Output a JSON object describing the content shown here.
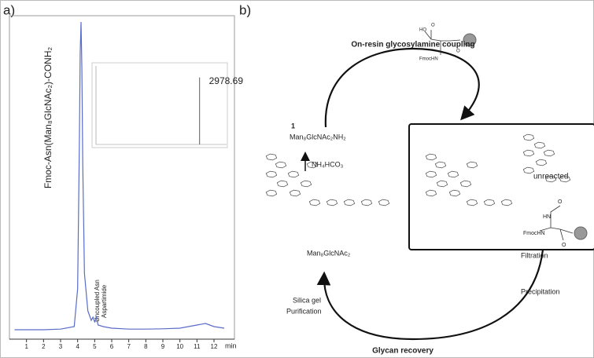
{
  "panels": {
    "a": "a)",
    "b": "b)"
  },
  "chart_data": [
    {
      "type": "line",
      "color": "#5a6cc8",
      "x": [
        0.3,
        1,
        2,
        3,
        3.8,
        4.0,
        4.1,
        4.15,
        4.2,
        4.25,
        4.3,
        4.4,
        4.6,
        4.8,
        4.9,
        5.0,
        5.1,
        5.2,
        5.5,
        6,
        7,
        8,
        9,
        10,
        11,
        11.5,
        12,
        12.6
      ],
      "values": [
        2,
        2,
        2,
        2.2,
        3,
        15,
        60,
        90,
        100,
        85,
        55,
        20,
        8,
        5,
        6,
        4.5,
        6,
        3.5,
        3,
        2.5,
        2.2,
        2.2,
        2.3,
        2.5,
        3.5,
        4,
        3,
        2.5
      ],
      "xlim": [
        0,
        13.2
      ],
      "xticks": [
        1,
        2,
        3,
        4,
        5,
        6,
        7,
        8,
        9,
        10,
        11,
        12
      ],
      "ylim": [
        0,
        100
      ],
      "x_label": "min",
      "annotations": [
        "Fmoc-Asn(Man₈GlcNAc₂)-CONH₂",
        "Uncoupled Asn",
        "Aspartimide"
      ]
    },
    {
      "type": "spectrum",
      "color": "#777777",
      "x": [
        2978.69
      ],
      "values": [
        5400
      ],
      "xlim": [
        600,
        3600
      ],
      "ylim": [
        0,
        6200
      ]
    }
  ],
  "diagram": {
    "title": "On-resin glycosylamine coupling",
    "compound_number": "1",
    "amine": "Man₈GlcNAc₂NH₂",
    "reagent": "NH₄HCO₃",
    "glycan": "Man₈GlcNAc₂",
    "unreacted": "unreacted",
    "resin_labels": [
      "HO",
      "O",
      "FmocHN",
      "O"
    ],
    "box_labels": [
      "HN",
      "FmocHN",
      "O",
      "O"
    ],
    "filtration": "Filtration",
    "precipitation": "Precipitation",
    "purification": [
      "Silica gel",
      "Purification"
    ],
    "recovery": "Glycan recovery"
  }
}
